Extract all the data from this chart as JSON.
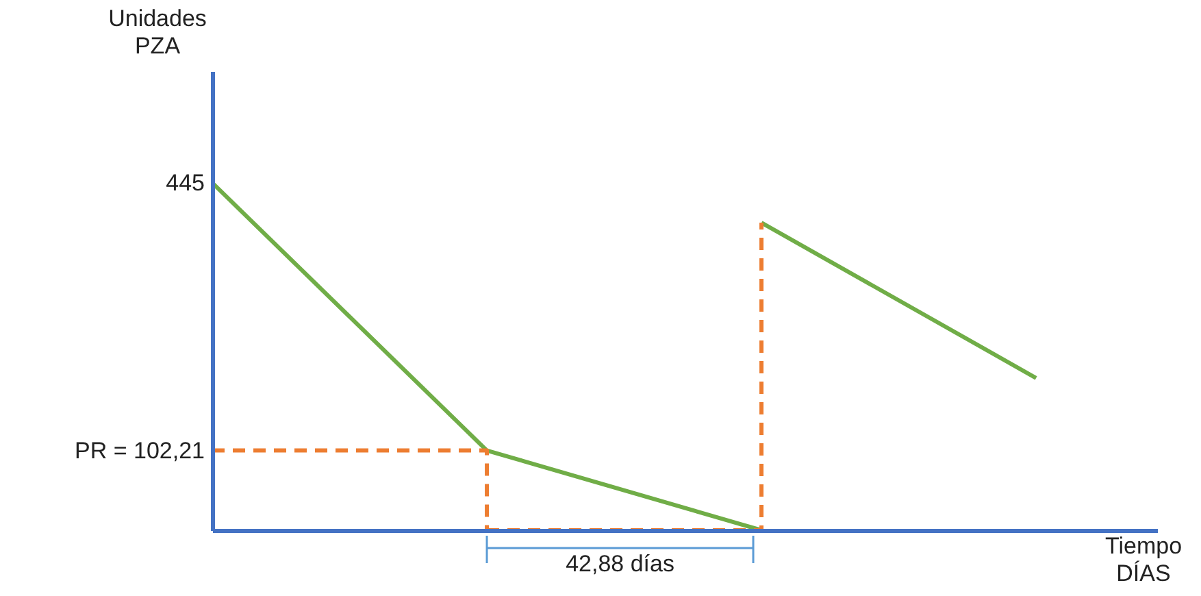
{
  "chart_data": {
    "type": "line",
    "ylabel": "Unidades\nPZA",
    "xlabel": "Tiempo\nDÍAS",
    "categories": [
      null,
      null,
      null,
      null
    ],
    "ylim": [
      0,
      588
    ],
    "yticks": [
      445,
      {
        "value": 102.21,
        "label": "PR = 102,21"
      }
    ],
    "tick_labels": "y",
    "grid": false,
    "marker": "none",
    "series": [
      {
        "values": [
          445,
          102.21,
          0,
          null
        ],
        "color": "#70ad47",
        "line_style": "solid"
      },
      {
        "values": [
          null,
          null,
          394,
          195
        ],
        "color": "#70ad47",
        "line_style": "solid"
      },
      {
        "type": "step",
        "values": [
          102.21,
          0,
          null,
          null
        ],
        "color": "#ed7d31",
        "line_style": "dashed"
      },
      {
        "type": "step",
        "values": [
          null,
          0,
          394,
          null
        ],
        "color": "#ed7d31",
        "line_style": "dashed"
      }
    ],
    "annotations": [
      "42,88 días"
    ]
  }
}
